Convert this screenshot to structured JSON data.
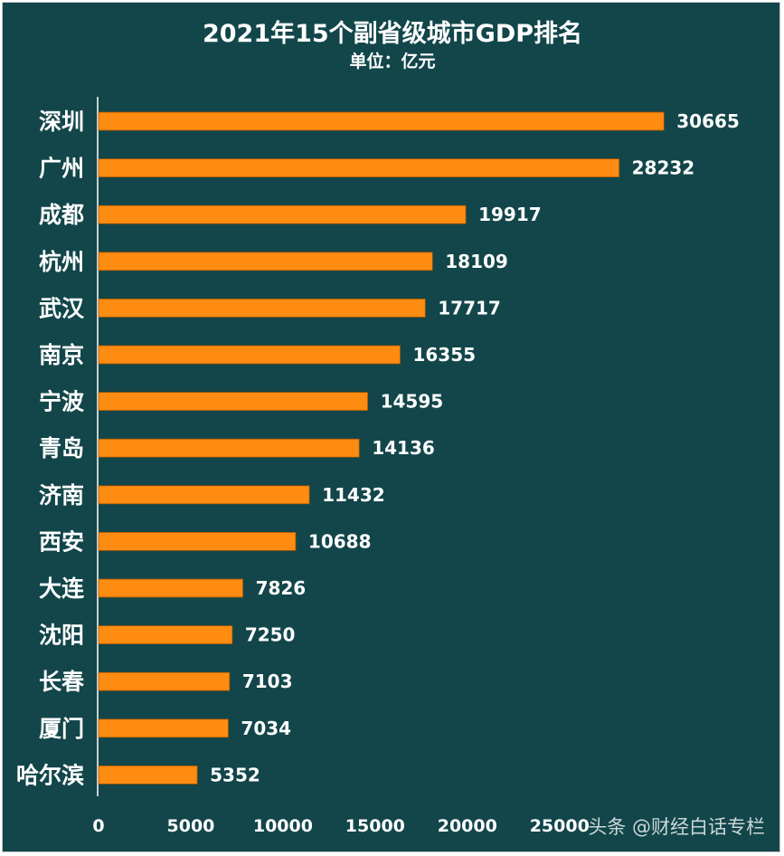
{
  "chart_data": {
    "type": "bar",
    "orientation": "horizontal",
    "title": "2021年15个副省级城市GDP排名",
    "subtitle": "单位：亿元",
    "categories": [
      "深圳",
      "广州",
      "成都",
      "杭州",
      "武汉",
      "南京",
      "宁波",
      "青岛",
      "济南",
      "西安",
      "大连",
      "沈阳",
      "长春",
      "厦门",
      "哈尔滨"
    ],
    "values": [
      30665,
      28232,
      19917,
      18109,
      17717,
      16355,
      14595,
      14136,
      11432,
      10688,
      7826,
      7250,
      7103,
      7034,
      5352
    ],
    "xlim": [
      0,
      35000
    ],
    "x_ticks": [
      0,
      5000,
      10000,
      15000,
      20000,
      25000
    ],
    "grid": false,
    "legend": "none",
    "colors": {
      "background": "#12464a",
      "bar": "#ff8c12",
      "text": "#ffffff",
      "axis": "#ffffff"
    }
  },
  "watermark": "头条 @财经白话专栏"
}
